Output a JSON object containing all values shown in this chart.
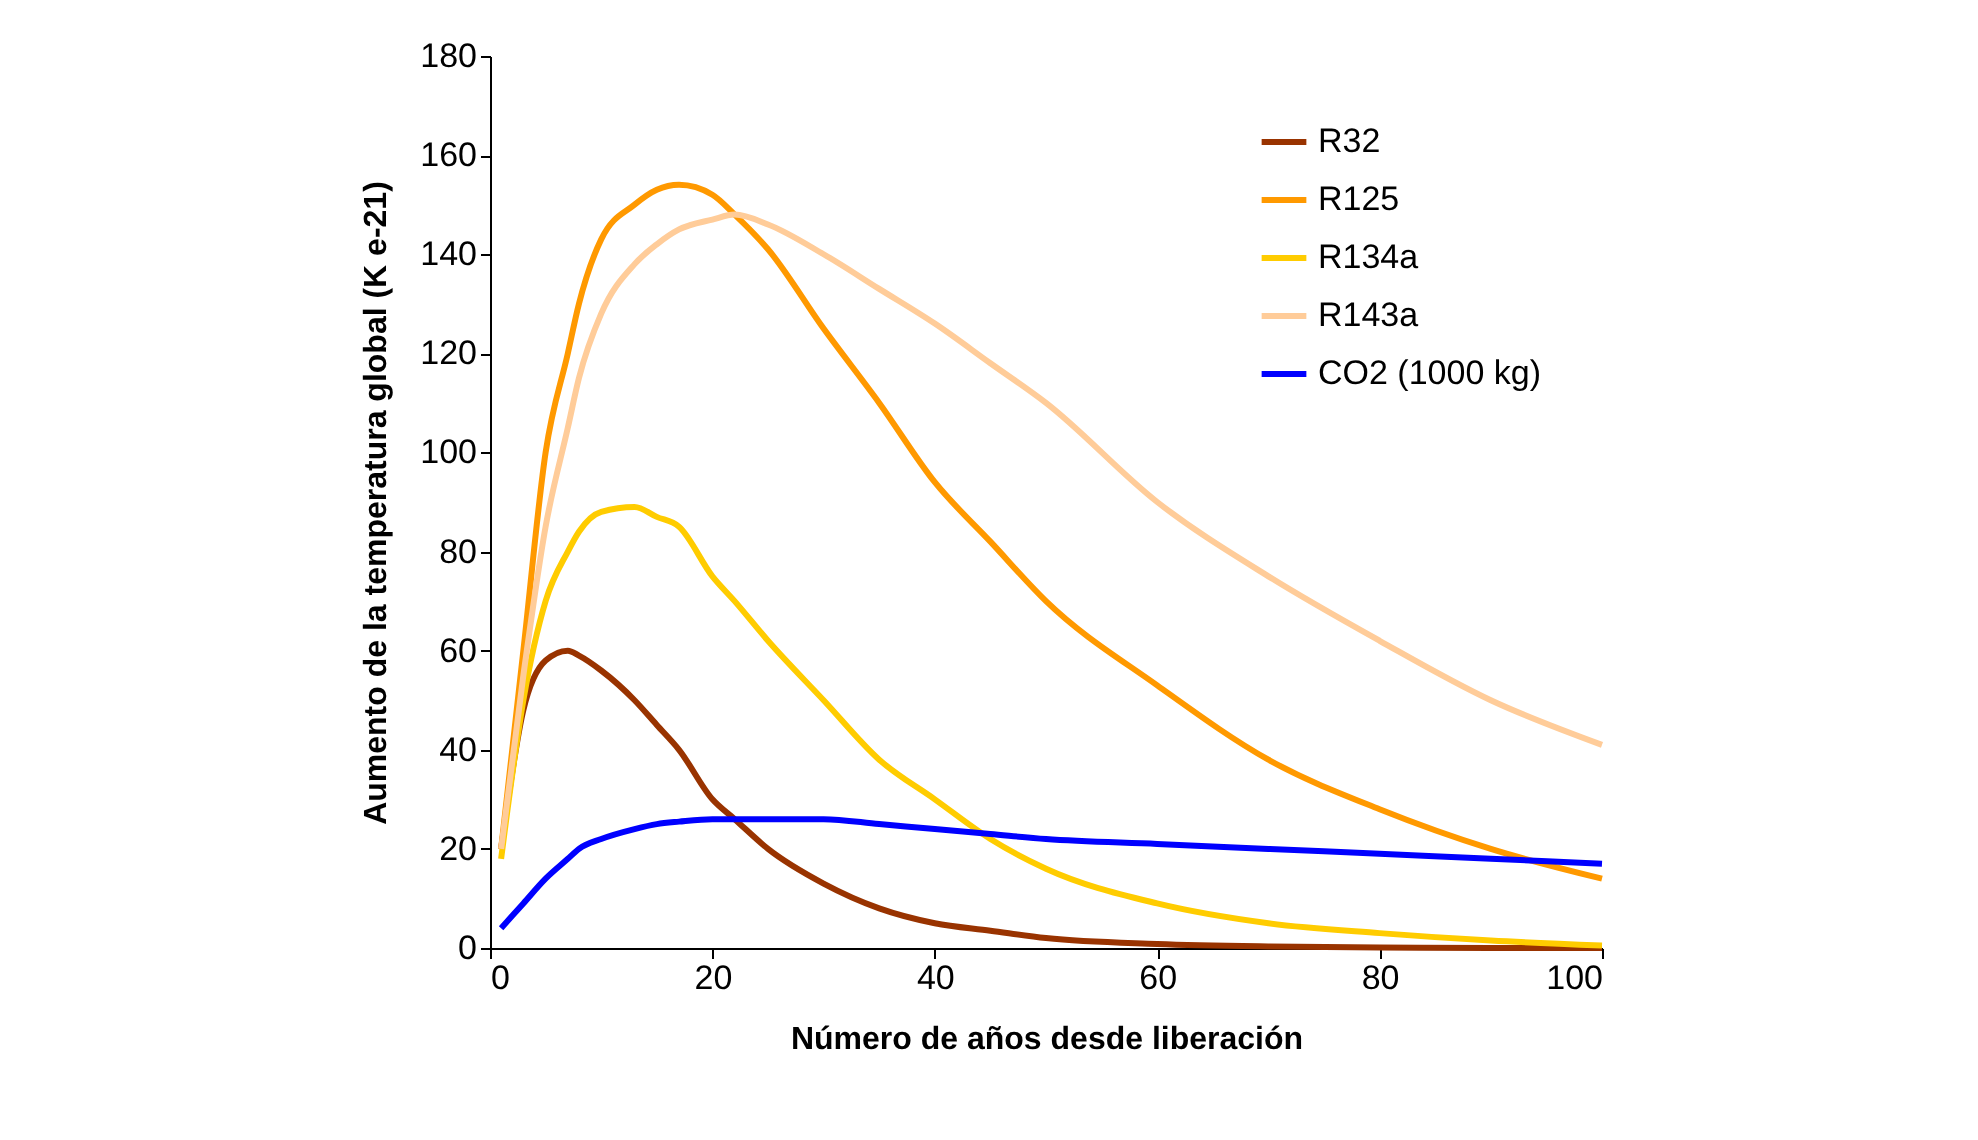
{
  "chart_data": {
    "type": "line",
    "xlabel": "Número de años desde liberación",
    "ylabel": "Aumento de la temperatura global (K e-21)",
    "x": [
      1,
      3,
      5,
      7,
      8,
      10,
      13,
      15,
      17,
      20,
      22,
      25,
      30,
      35,
      40,
      45,
      50,
      60,
      70,
      80,
      90,
      100
    ],
    "series": [
      {
        "name": "R32",
        "color": "#993300",
        "values": [
          20,
          48,
          58,
          60,
          59,
          56,
          50,
          45,
          40,
          30,
          26,
          20,
          13,
          8,
          5,
          3.5,
          2,
          0.8,
          0.3,
          0.1,
          0,
          0
        ]
      },
      {
        "name": "R125",
        "color": "#ff9900",
        "values": [
          20,
          60,
          100,
          120,
          130,
          143,
          150,
          153,
          154,
          152,
          148,
          141,
          125,
          110,
          94,
          82,
          70,
          53,
          38,
          28,
          20,
          14
        ]
      },
      {
        "name": "R134a",
        "color": "#ffcc00",
        "values": [
          18,
          50,
          70,
          80,
          84,
          88,
          89,
          87,
          85,
          75,
          70,
          62,
          50,
          38,
          30,
          22,
          16,
          9,
          5,
          3,
          1.5,
          0.5
        ]
      },
      {
        "name": "R143a",
        "color": "#ffcc99",
        "values": [
          20,
          55,
          85,
          105,
          115,
          128,
          138,
          142,
          145,
          147,
          148,
          146,
          140,
          133,
          126,
          118,
          110,
          90,
          75,
          62,
          50,
          41
        ]
      },
      {
        "name": "CO2 (1000 kg)",
        "color": "#0000ff",
        "values": [
          4,
          9,
          14,
          18,
          20,
          22,
          24,
          25,
          25.5,
          26,
          26,
          26,
          26,
          25,
          24,
          23,
          22,
          21,
          20,
          19,
          18,
          17
        ]
      }
    ],
    "xlim": [
      0,
      100
    ],
    "xticks": [
      0,
      20,
      40,
      60,
      80,
      100
    ],
    "ylim": [
      0,
      180
    ],
    "yticks": [
      0,
      20,
      40,
      60,
      80,
      100,
      120,
      140,
      160,
      180
    ],
    "grid": false,
    "legend": "top right",
    "marker": "none",
    "line_style": "solid"
  }
}
